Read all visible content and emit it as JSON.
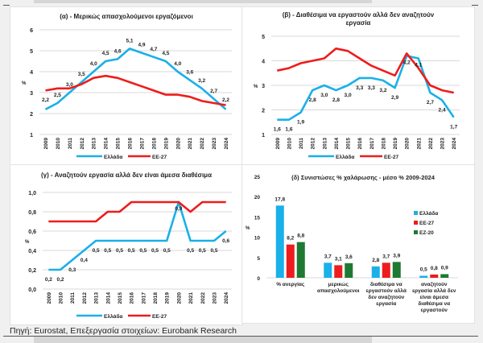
{
  "source_text": "Πηγή: Eurostat, Επεξεργασία στοιχείων: Eurobank Research",
  "colors": {
    "greece": "#1ab0e8",
    "eu27": "#ee1c1c",
    "ez20": "#1e7a32",
    "grid": "#d9d9d9",
    "text": "#222222"
  },
  "chart_data": [
    {
      "id": "alpha",
      "type": "line",
      "title": "(α) - Μερικώς απασχολούμενοι εργαζόμενοι",
      "ylabel": "%",
      "ylim": [
        1,
        6
      ],
      "yticks": [
        "1",
        "2",
        "3",
        "4",
        "5",
        "6"
      ],
      "ytick_values": [
        1,
        2,
        3,
        4,
        5,
        6
      ],
      "x": [
        "2009",
        "2010",
        "2011",
        "2012",
        "2013",
        "2014",
        "2015",
        "2016",
        "2017",
        "2018",
        "2019",
        "2020",
        "2021",
        "2022",
        "2023",
        "2024"
      ],
      "series": [
        {
          "name": "Ελλάδα",
          "color": "#1ab0e8",
          "values": [
            2.2,
            2.5,
            3.0,
            3.5,
            4.0,
            4.5,
            4.6,
            5.1,
            4.9,
            4.7,
            4.5,
            4.0,
            3.6,
            3.2,
            2.7,
            2.2
          ],
          "labels": [
            "2,2",
            "2,5",
            "3,0",
            "3,5",
            "4,0",
            "4,5",
            "4,6",
            "5,1",
            "4,9",
            "4,7",
            "4,5",
            "4,0",
            "3,6",
            "3,2",
            "2,7",
            "2,2"
          ]
        },
        {
          "name": "ΕΕ-27",
          "color": "#ee1c1c",
          "values": [
            3.1,
            3.2,
            3.2,
            3.4,
            3.7,
            3.8,
            3.7,
            3.5,
            3.3,
            3.1,
            2.9,
            2.9,
            2.8,
            2.6,
            2.5,
            2.4
          ]
        }
      ],
      "legend": [
        "Ελλάδα",
        "ΕΕ-27"
      ],
      "legend_position": "bottom"
    },
    {
      "id": "beta",
      "type": "line",
      "title": "(β) - Διαθέσιμα να εργαστούν αλλά δεν αναζητούν",
      "title_line2": "εργασία",
      "ylabel": "%",
      "ylim": [
        1,
        5
      ],
      "yticks": [
        "1",
        "2",
        "3",
        "4",
        "5"
      ],
      "ytick_values": [
        1,
        2,
        3,
        4,
        5
      ],
      "x": [
        "2009",
        "2010",
        "2011",
        "2012",
        "2013",
        "2014",
        "2015",
        "2016",
        "2017",
        "2018",
        "2019",
        "2020",
        "2021",
        "2022",
        "2023",
        "2024"
      ],
      "series": [
        {
          "name": "Ελλάδα",
          "color": "#1ab0e8",
          "values": [
            1.6,
            1.6,
            1.9,
            2.8,
            3.0,
            2.8,
            3.0,
            3.3,
            3.3,
            3.2,
            2.9,
            4.2,
            4.1,
            2.7,
            2.4,
            1.7
          ],
          "labels": [
            "1,6",
            "1,6",
            "1,9",
            "2,8",
            "3,0",
            "2,8",
            "3,0",
            "3,3",
            "3,3",
            "3,2",
            "2,9",
            "4,2",
            "4,1",
            "2,7",
            "2,4",
            "1,7"
          ]
        },
        {
          "name": "ΕΕ-27",
          "color": "#ee1c1c",
          "values": [
            3.6,
            3.7,
            3.9,
            4.0,
            4.1,
            4.5,
            4.4,
            4.1,
            3.8,
            3.6,
            3.4,
            4.3,
            3.7,
            3.0,
            2.8,
            2.7
          ]
        }
      ],
      "legend": [
        "Ελλάδα",
        "ΕΕ-27"
      ],
      "legend_position": "bottom"
    },
    {
      "id": "gamma",
      "type": "line",
      "title": "(γ) - Αναζητούν εργασία αλλά δεν είναι άμεσα διαθέσιμα",
      "ylabel": "%",
      "ylim": [
        0,
        1
      ],
      "yticks": [
        "0,0",
        "0,2",
        "0,4",
        "0,6",
        "0,8",
        "1,0"
      ],
      "ytick_values": [
        0,
        0.2,
        0.4,
        0.6,
        0.8,
        1.0
      ],
      "x": [
        "2009",
        "2010",
        "2011",
        "2012",
        "2013",
        "2014",
        "2015",
        "2016",
        "2017",
        "2018",
        "2019",
        "2020",
        "2021",
        "2022",
        "2023",
        "2024"
      ],
      "series": [
        {
          "name": "Ελλάδα",
          "color": "#1ab0e8",
          "values": [
            0.2,
            0.2,
            0.3,
            0.4,
            0.5,
            0.5,
            0.5,
            0.5,
            0.5,
            0.5,
            0.5,
            0.9,
            0.5,
            0.5,
            0.5,
            0.6
          ],
          "labels": [
            "0,2",
            "0,2",
            "0,3",
            "0,4",
            "0,5",
            "0,5",
            "0,5",
            "0,5",
            "0,5",
            "0,5",
            "0,5",
            "0,9",
            "0,5",
            "0,5",
            "0,5",
            "0,6"
          ]
        },
        {
          "name": "ΕΕ-27",
          "color": "#ee1c1c",
          "values": [
            0.7,
            0.7,
            0.7,
            0.7,
            0.7,
            0.8,
            0.8,
            0.9,
            0.9,
            0.9,
            0.9,
            0.9,
            0.8,
            0.9,
            0.9,
            0.9
          ]
        }
      ],
      "legend": [
        "Ελλάδα",
        "ΕΕ-27"
      ],
      "legend_position": "bottom"
    },
    {
      "id": "delta",
      "type": "bar",
      "title": "(δ) Συνιστώσες % χαλάρωσης - μέσο % 2009-2024",
      "ylabel": "%",
      "ylim": [
        0,
        25
      ],
      "yticks": [
        "0",
        "5",
        "10",
        "15",
        "20",
        "25"
      ],
      "ytick_values": [
        0,
        5,
        10,
        15,
        20,
        25
      ],
      "categories": [
        [
          "% ανεργίας"
        ],
        [
          "μερικώς",
          "απασχολούμενοι"
        ],
        [
          "διαθέσιμα να",
          "εργαστούν αλλά",
          "δεν αναζητούν",
          "εργασία"
        ],
        [
          "αναζητούν",
          "εργασία αλλά δεν",
          "είναι άμεσα",
          "διαθέσιμα να",
          "εργαστούν"
        ]
      ],
      "series": [
        {
          "name": "Ελλάδα",
          "color": "#1ab0e8",
          "values": [
            17.8,
            3.7,
            2.8,
            0.5
          ],
          "labels": [
            "17,8",
            "3,7",
            "2,8",
            "0,5"
          ]
        },
        {
          "name": "ΕΕ-27",
          "color": "#ee1c1c",
          "values": [
            8.2,
            3.1,
            3.7,
            0.8
          ],
          "labels": [
            "8,2",
            "3,1",
            "3,7",
            "0,8"
          ]
        },
        {
          "name": "ΕΖ-20",
          "color": "#1e7a32",
          "values": [
            8.8,
            3.6,
            3.9,
            0.9
          ],
          "labels": [
            "8,8",
            "3,6",
            "3,9",
            "0,9"
          ]
        }
      ],
      "legend": [
        "Ελλάδα",
        "ΕΕ-27",
        "ΕΖ-20"
      ],
      "legend_position": "right"
    }
  ]
}
